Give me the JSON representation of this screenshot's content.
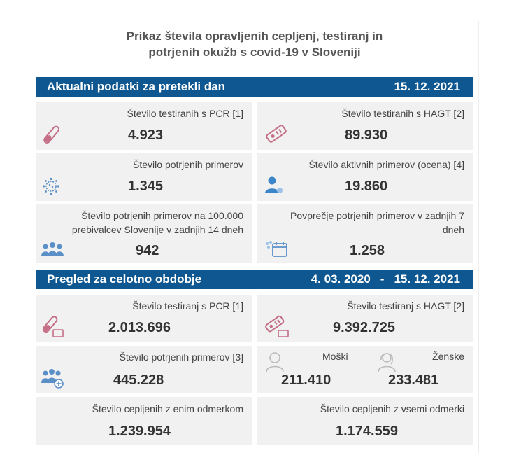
{
  "title": {
    "line1": "Prikaz števila opravljenih cepljenj, testiranj in",
    "line2": "potrjenih okužb s covid-19 v Sloveniji"
  },
  "daily": {
    "header": "Aktualni podatki za pretekli dan",
    "date": "15. 12. 2021",
    "pcr": {
      "label": "Število testiranih s PCR [1]",
      "value": "4.923"
    },
    "hagt": {
      "label": "Število testiranih s HAGT [2]",
      "value": "89.930"
    },
    "confirmed": {
      "label": "Število potrjenih primerov",
      "value": "1.345"
    },
    "active": {
      "label": "Število aktivnih primerov (ocena) [4]",
      "value": "19.860"
    },
    "per100k": {
      "label_line1": "Število potrjenih primerov na 100.000",
      "label_line2": "prebivalcev Slovenije v zadnjih 14 dneh",
      "value": "942"
    },
    "avg7": {
      "label_line1": "Povprečje potrjenih primerov v zadnjih 7",
      "label_line2": "dneh",
      "value": "1.258"
    }
  },
  "total": {
    "header": "Pregled za celotno obdobje",
    "date_from": "4. 03. 2020",
    "dash": "-",
    "date_to": "15. 12. 2021",
    "pcr": {
      "label": "Število testiranj s PCR [1]",
      "value": "2.013.696"
    },
    "hagt": {
      "label": "Število testiranj s HAGT [2]",
      "value": "9.392.725"
    },
    "confirmed": {
      "label": "Število potrjenih primerov [3]",
      "value": "445.228"
    },
    "men": {
      "label": "Moški",
      "value": "211.410"
    },
    "women": {
      "label": "Ženske",
      "value": "233.481"
    },
    "vacc1": {
      "label": "Število cepljenih z enim odmerkom",
      "value": "1.239.954"
    },
    "vaccAll": {
      "label": "Število cepljenih z vsemi odmerki",
      "value": "1.174.559"
    }
  },
  "icons": [
    "test-tube-icon",
    "rapid-test-icon",
    "virus-icon",
    "person-icon",
    "group-icon",
    "calendar-icon",
    "male-icon",
    "female-icon"
  ],
  "colors": {
    "header_bar": "#0f5790",
    "box_bg": "#f1f1f1",
    "icon_pink": "#c46f86",
    "icon_blue": "#5b8fc7"
  }
}
